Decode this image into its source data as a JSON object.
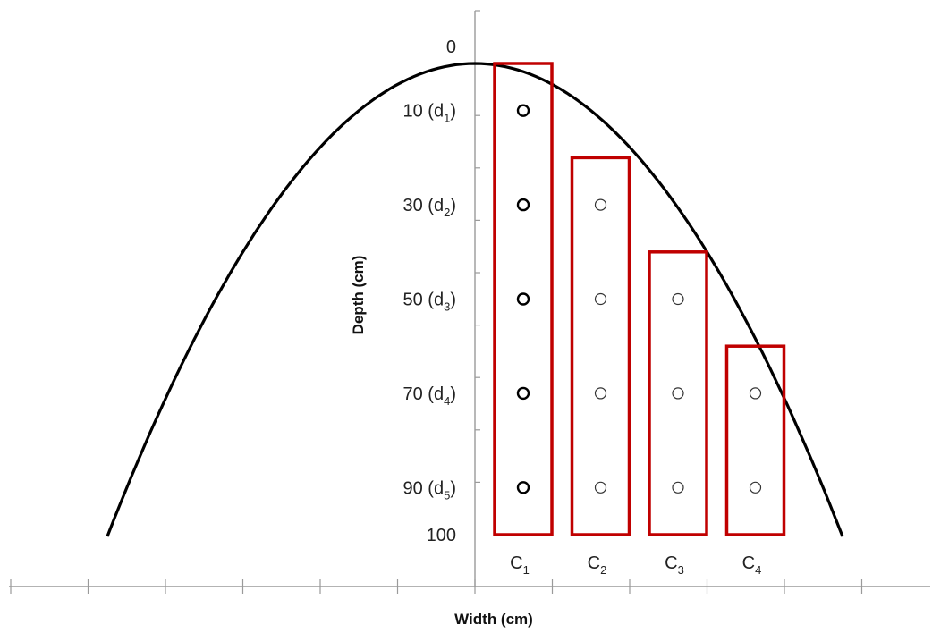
{
  "x_axis_title": "Width (cm)",
  "y_axis_title": "Depth (cm)",
  "depth_labels": [
    {
      "depth": 0,
      "text": "0",
      "sub": ""
    },
    {
      "depth": 10,
      "text": "10 (d",
      "sub": "1",
      "close": ")"
    },
    {
      "depth": 30,
      "text": "30 (d",
      "sub": "2",
      "close": ")"
    },
    {
      "depth": 50,
      "text": "50 (d",
      "sub": "3",
      "close": ")"
    },
    {
      "depth": 70,
      "text": "70 (d",
      "sub": "4",
      "close": ")"
    },
    {
      "depth": 90,
      "text": "90 (d",
      "sub": "5",
      "close": ")"
    },
    {
      "depth": 100,
      "text": "100",
      "sub": ""
    }
  ],
  "columns": [
    {
      "base": "C",
      "sub": "1",
      "top_depth": 0,
      "sample_depths": [
        10,
        30,
        50,
        70,
        90
      ],
      "style": "bold"
    },
    {
      "base": "C",
      "sub": "2",
      "top_depth": 20,
      "sample_depths": [
        30,
        50,
        70,
        90
      ],
      "style": "thin"
    },
    {
      "base": "C",
      "sub": "3",
      "top_depth": 40,
      "sample_depths": [
        50,
        70,
        90
      ],
      "style": "thin"
    },
    {
      "base": "C",
      "sub": "4",
      "top_depth": 60,
      "sample_depths": [
        70,
        90
      ],
      "style": "thin"
    }
  ],
  "colors": {
    "column_outline": "#c00000",
    "curve": "#000000",
    "axis": "#9a9a9a"
  }
}
